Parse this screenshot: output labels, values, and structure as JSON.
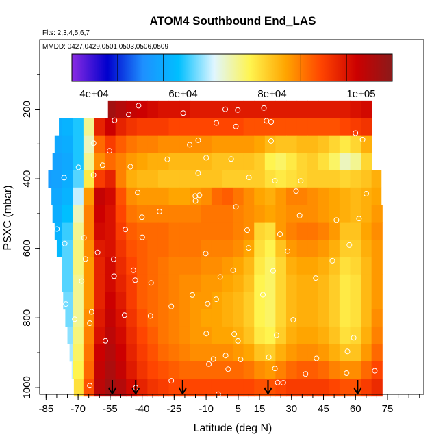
{
  "chart_data": {
    "type": "heatmap",
    "title": "ATOM4 Southbound End_LAS",
    "subtitle": "Flts: 2,3,4,5,6,7",
    "annotation": "MMDD: 0427,0429,0501,0503,0506,0509",
    "xlabel": "Latitude (deg N)",
    "ylabel": "PSXC (mbar)",
    "xlim": [
      -88,
      92
    ],
    "ylim": [
      1020,
      0
    ],
    "x_ticks": [
      -85,
      -70,
      -55,
      -40,
      -25,
      -10,
      5,
      15,
      30,
      45,
      60,
      75
    ],
    "x_tick_labels": [
      "-85",
      "-70",
      "-55",
      "-40",
      "-25",
      "-10",
      "5",
      "15",
      "30",
      "45",
      "60",
      "75"
    ],
    "y_ticks": [
      200,
      400,
      600,
      800,
      1000
    ],
    "y_tick_labels": [
      "200",
      "400",
      "600",
      "800",
      "1000"
    ],
    "colorbar": {
      "min": 35000,
      "max": 107000,
      "ticks": [
        40000,
        60000,
        80000,
        100000
      ],
      "tick_labels": [
        "4e+04",
        "6e+04",
        "8e+04",
        "1e+05"
      ],
      "colors": [
        "#8a2be2",
        "#0000cd",
        "#1e90ff",
        "#00bfff",
        "#e0f6ff",
        "#fff44f",
        "#ffa500",
        "#ff4500",
        "#cc0000",
        "#8b1a1a"
      ]
    },
    "pressure_levels": [
      200,
      250,
      300,
      350,
      400,
      450,
      500,
      550,
      600,
      650,
      700,
      750,
      800,
      850,
      900,
      950,
      1000
    ],
    "latitudes": [
      -85,
      -80,
      -75,
      -70,
      -65,
      -60,
      -55,
      -50,
      -45,
      -40,
      -35,
      -30,
      -25,
      -20,
      -15,
      -10,
      -5,
      0,
      5,
      10,
      15,
      20,
      25,
      30,
      35,
      40,
      45,
      50,
      55,
      60,
      65,
      70,
      75
    ],
    "coverage": [
      {
        "pressure": 200,
        "lat_min": -56,
        "lat_max": 68
      },
      {
        "pressure": 250,
        "lat_min": -79,
        "lat_max": 69
      },
      {
        "pressure": 300,
        "lat_min": -81,
        "lat_max": 70
      },
      {
        "pressure": 350,
        "lat_min": -82,
        "lat_max": 71
      },
      {
        "pressure": 400,
        "lat_min": -84,
        "lat_max": 72
      },
      {
        "pressure": 450,
        "lat_min": -83,
        "lat_max": 72
      },
      {
        "pressure": 500,
        "lat_min": -82,
        "lat_max": 73
      },
      {
        "pressure": 550,
        "lat_min": -81,
        "lat_max": 73
      },
      {
        "pressure": 600,
        "lat_min": -80,
        "lat_max": 73
      },
      {
        "pressure": 650,
        "lat_min": -79,
        "lat_max": 73
      },
      {
        "pressure": 700,
        "lat_min": -78,
        "lat_max": 73
      },
      {
        "pressure": 750,
        "lat_min": -77,
        "lat_max": 73
      },
      {
        "pressure": 800,
        "lat_min": -76,
        "lat_max": 73
      },
      {
        "pressure": 850,
        "lat_min": -75,
        "lat_max": 73
      },
      {
        "pressure": 900,
        "lat_min": -74,
        "lat_max": 73
      },
      {
        "pressure": 950,
        "lat_min": -73,
        "lat_max": 73
      },
      {
        "pressure": 1000,
        "lat_min": -72,
        "lat_max": 73
      }
    ],
    "values": [
      [
        null,
        null,
        null,
        null,
        null,
        null,
        104000,
        102000,
        100000,
        99000,
        98000,
        97000,
        97000,
        97000,
        96000,
        96000,
        96000,
        96000,
        96000,
        96000,
        96000,
        96000,
        96000,
        96000,
        96000,
        96000,
        96000,
        96000,
        96000,
        97000,
        98000,
        null,
        null
      ],
      [
        null,
        56000,
        57000,
        60000,
        72000,
        95000,
        99000,
        95000,
        93000,
        92000,
        92000,
        92000,
        91000,
        91000,
        91000,
        91000,
        91000,
        91000,
        91000,
        90000,
        90000,
        90000,
        90000,
        90000,
        90000,
        90000,
        90000,
        90000,
        91000,
        92000,
        93000,
        null,
        null
      ],
      [
        null,
        55000,
        56000,
        60000,
        70000,
        88000,
        92000,
        89000,
        87000,
        86000,
        86000,
        85000,
        85000,
        85000,
        85000,
        85000,
        84000,
        84000,
        84000,
        84000,
        83000,
        81000,
        80000,
        80000,
        81000,
        81000,
        80000,
        78000,
        76000,
        78000,
        82000,
        null,
        null
      ],
      [
        null,
        54000,
        55000,
        60000,
        72000,
        85000,
        88000,
        86000,
        84000,
        83000,
        82000,
        82000,
        81000,
        81000,
        81000,
        81000,
        80000,
        80000,
        80000,
        80000,
        79000,
        75000,
        74000,
        76000,
        78000,
        79000,
        77000,
        74000,
        70000,
        72000,
        78000,
        null,
        null
      ],
      [
        53000,
        54000,
        56000,
        62000,
        76000,
        92000,
        95000,
        86000,
        82000,
        81000,
        81000,
        80000,
        80000,
        80000,
        80000,
        80000,
        80000,
        79000,
        79000,
        79000,
        79000,
        77000,
        76000,
        77000,
        78000,
        79000,
        79000,
        79000,
        78000,
        79000,
        80000,
        82000,
        null
      ],
      [
        null,
        55000,
        57000,
        66000,
        84000,
        100000,
        98000,
        90000,
        85000,
        84000,
        84000,
        84000,
        83000,
        83000,
        84000,
        85000,
        88000,
        89000,
        87000,
        85000,
        83000,
        82000,
        84000,
        86000,
        86000,
        85000,
        84000,
        83000,
        82000,
        81000,
        82000,
        83000,
        null
      ],
      [
        null,
        56000,
        59000,
        70000,
        86000,
        99000,
        97000,
        91000,
        87000,
        86000,
        86000,
        86000,
        86000,
        86000,
        86000,
        87000,
        87000,
        87000,
        86000,
        85000,
        84000,
        83000,
        84000,
        85000,
        85000,
        85000,
        84000,
        83000,
        82000,
        81000,
        82000,
        84000,
        null
      ],
      [
        null,
        57000,
        61000,
        72000,
        86000,
        98000,
        97000,
        92000,
        89000,
        88000,
        88000,
        88000,
        87000,
        87000,
        87000,
        87000,
        87000,
        87000,
        86000,
        85000,
        78000,
        77000,
        84000,
        86000,
        87000,
        87000,
        86000,
        84000,
        80000,
        80000,
        83000,
        85000,
        null
      ],
      [
        null,
        58000,
        62000,
        73000,
        85000,
        96000,
        97000,
        93000,
        90000,
        89000,
        88000,
        88000,
        87000,
        87000,
        87000,
        86000,
        86000,
        86000,
        85000,
        83000,
        77000,
        75000,
        80000,
        84000,
        85000,
        85000,
        84000,
        82000,
        79000,
        79000,
        82000,
        84000,
        null
      ],
      [
        null,
        null,
        62000,
        73000,
        84000,
        95000,
        98000,
        94000,
        91000,
        89000,
        88000,
        87000,
        86000,
        86000,
        86000,
        85000,
        85000,
        84000,
        83000,
        81000,
        76000,
        74000,
        78000,
        82000,
        83000,
        83000,
        82000,
        80000,
        77000,
        78000,
        81000,
        84000,
        null
      ],
      [
        null,
        null,
        62000,
        72000,
        84000,
        95000,
        98000,
        95000,
        92000,
        89000,
        88000,
        87000,
        86000,
        85000,
        85000,
        84000,
        84000,
        83000,
        82000,
        80000,
        75000,
        74000,
        78000,
        81000,
        82000,
        82000,
        81000,
        79000,
        76000,
        77000,
        81000,
        84000,
        null
      ],
      [
        null,
        null,
        63000,
        72000,
        84000,
        95000,
        99000,
        96000,
        92000,
        89000,
        88000,
        87000,
        86000,
        85000,
        84000,
        84000,
        83000,
        82000,
        81000,
        79000,
        75000,
        74000,
        78000,
        81000,
        82000,
        82000,
        81000,
        79000,
        76000,
        77000,
        81000,
        84000,
        null
      ],
      [
        null,
        null,
        63000,
        72000,
        85000,
        96000,
        100000,
        97000,
        93000,
        90000,
        88000,
        87000,
        86000,
        85000,
        84000,
        83000,
        83000,
        82000,
        81000,
        79000,
        75000,
        74000,
        78000,
        81000,
        82000,
        82000,
        81000,
        79000,
        76000,
        77000,
        81000,
        85000,
        null
      ],
      [
        null,
        null,
        64000,
        73000,
        86000,
        97000,
        101000,
        98000,
        94000,
        91000,
        89000,
        87000,
        86000,
        85000,
        84000,
        84000,
        83000,
        83000,
        82000,
        80000,
        76000,
        75000,
        79000,
        82000,
        83000,
        83000,
        82000,
        80000,
        77000,
        78000,
        82000,
        86000,
        null
      ],
      [
        null,
        null,
        65000,
        74000,
        87000,
        99000,
        102000,
        99000,
        95000,
        92000,
        90000,
        88000,
        87000,
        86000,
        85000,
        85000,
        85000,
        85000,
        84000,
        83000,
        80000,
        79000,
        82000,
        84000,
        85000,
        85000,
        84000,
        82000,
        80000,
        80000,
        84000,
        88000,
        null
      ],
      [
        null,
        null,
        66000,
        75000,
        88000,
        100000,
        103000,
        100000,
        96000,
        93000,
        91000,
        90000,
        89000,
        88000,
        88000,
        88000,
        88000,
        88000,
        88000,
        87000,
        85000,
        84000,
        86000,
        88000,
        89000,
        89000,
        88000,
        86000,
        85000,
        85000,
        88000,
        91000,
        null
      ],
      [
        null,
        null,
        null,
        77000,
        90000,
        101000,
        104000,
        102000,
        98000,
        95000,
        93000,
        92000,
        91000,
        91000,
        91000,
        91000,
        91000,
        91000,
        91000,
        91000,
        90000,
        90000,
        91000,
        92000,
        92000,
        92000,
        92000,
        91000,
        90000,
        90000,
        92000,
        94000,
        null
      ]
    ],
    "flight_marker_latitudes": [
      -54,
      -43,
      -21,
      19,
      61
    ]
  }
}
